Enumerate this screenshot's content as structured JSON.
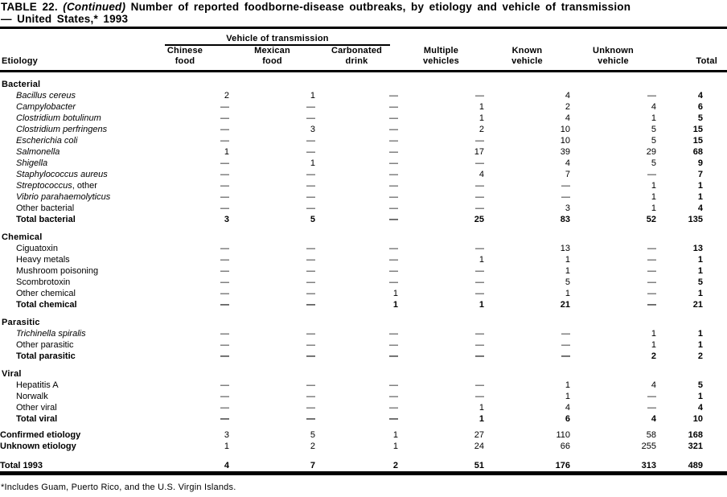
{
  "title": {
    "part1": "TABLE 22.",
    "part2": "(Continued)",
    "part3": "Number of reported foodborne-disease outbreaks, by etiology and vehicle of transmission",
    "line2": "— United States,* 1993"
  },
  "table": {
    "spanner_label": "Vehicle of transmission",
    "etiology_header": "Etiology",
    "columns": [
      "Chinese\nfood",
      "Mexican\nfood",
      "Carbonated\ndrink",
      "Multiple\nvehicles",
      "Known\nvehicle",
      "Unknown\nvehicle",
      "Total"
    ],
    "sections": [
      {
        "header": "Bacterial",
        "rows": [
          {
            "label": "Bacillus cereus",
            "italic": true,
            "values": [
              "2",
              "1",
              "—",
              "—",
              "4",
              "—",
              "4"
            ]
          },
          {
            "label": "Campylobacter",
            "italic": true,
            "values": [
              "—",
              "—",
              "—",
              "1",
              "2",
              "4",
              "6"
            ]
          },
          {
            "label": "Clostridium botulinum",
            "italic": true,
            "values": [
              "—",
              "—",
              "—",
              "1",
              "4",
              "1",
              "5"
            ]
          },
          {
            "label": "Clostridium perfringens",
            "italic": true,
            "values": [
              "—",
              "3",
              "—",
              "2",
              "10",
              "5",
              "15"
            ]
          },
          {
            "label": "Escherichia coli",
            "italic": true,
            "values": [
              "—",
              "—",
              "—",
              "—",
              "10",
              "5",
              "15"
            ]
          },
          {
            "label": "Salmonella",
            "italic": true,
            "values": [
              "1",
              "—",
              "—",
              "17",
              "39",
              "29",
              "68"
            ]
          },
          {
            "label": "Shigella",
            "italic": true,
            "values": [
              "—",
              "1",
              "—",
              "—",
              "4",
              "5",
              "9"
            ]
          },
          {
            "label": "Staphylococcus aureus",
            "italic": true,
            "values": [
              "—",
              "—",
              "—",
              "4",
              "7",
              "—",
              "7"
            ]
          },
          {
            "label": "Streptococcus",
            "suffix": ", other",
            "italic": true,
            "values": [
              "—",
              "—",
              "—",
              "—",
              "—",
              "1",
              "1"
            ]
          },
          {
            "label": "Vibrio parahaemolyticus",
            "italic": true,
            "values": [
              "—",
              "—",
              "—",
              "—",
              "—",
              "1",
              "1"
            ]
          },
          {
            "label": "Other bacterial",
            "values": [
              "—",
              "—",
              "—",
              "—",
              "3",
              "1",
              "4"
            ]
          },
          {
            "label": "Total bacterial",
            "bold": true,
            "values": [
              "3",
              "5",
              "—",
              "25",
              "83",
              "52",
              "135"
            ]
          }
        ]
      },
      {
        "header": "Chemical",
        "rows": [
          {
            "label": "Ciguatoxin",
            "values": [
              "—",
              "—",
              "—",
              "—",
              "13",
              "—",
              "13"
            ]
          },
          {
            "label": "Heavy metals",
            "values": [
              "—",
              "—",
              "—",
              "1",
              "1",
              "—",
              "1"
            ]
          },
          {
            "label": "Mushroom poisoning",
            "values": [
              "—",
              "—",
              "—",
              "—",
              "1",
              "—",
              "1"
            ]
          },
          {
            "label": "Scombrotoxin",
            "values": [
              "—",
              "—",
              "—",
              "—",
              "5",
              "—",
              "5"
            ]
          },
          {
            "label": "Other chemical",
            "values": [
              "—",
              "—",
              "1",
              "—",
              "1",
              "—",
              "1"
            ]
          },
          {
            "label": "Total chemical",
            "bold": true,
            "values": [
              "—",
              "—",
              "1",
              "1",
              "21",
              "—",
              "21"
            ]
          }
        ]
      },
      {
        "header": "Parasitic",
        "rows": [
          {
            "label": "Trichinella spiralis",
            "italic": true,
            "values": [
              "—",
              "—",
              "—",
              "—",
              "—",
              "1",
              "1"
            ]
          },
          {
            "label": "Other parasitic",
            "values": [
              "—",
              "—",
              "—",
              "—",
              "—",
              "1",
              "1"
            ]
          },
          {
            "label": "Total parasitic",
            "bold": true,
            "values": [
              "—",
              "—",
              "—",
              "—",
              "—",
              "2",
              "2"
            ]
          }
        ]
      },
      {
        "header": "Viral",
        "rows": [
          {
            "label": "Hepatitis A",
            "values": [
              "—",
              "—",
              "—",
              "—",
              "1",
              "4",
              "5"
            ]
          },
          {
            "label": "Norwalk",
            "values": [
              "—",
              "—",
              "—",
              "—",
              "1",
              "—",
              "1"
            ]
          },
          {
            "label": "Other viral",
            "values": [
              "—",
              "—",
              "—",
              "1",
              "4",
              "—",
              "4"
            ]
          },
          {
            "label": "Total viral",
            "bold": true,
            "values": [
              "—",
              "—",
              "—",
              "1",
              "6",
              "4",
              "10"
            ]
          }
        ]
      }
    ],
    "summary_rows": [
      {
        "label": "Confirmed etiology",
        "bold_label": true,
        "gap": "sm",
        "values": [
          "3",
          "5",
          "1",
          "27",
          "110",
          "58",
          "168"
        ]
      },
      {
        "label": "Unknown etiology",
        "bold_label": true,
        "values": [
          "1",
          "2",
          "1",
          "24",
          "66",
          "255",
          "321"
        ]
      },
      {
        "label": "Total 1993",
        "bold": true,
        "gap": "lg",
        "values": [
          "4",
          "7",
          "2",
          "51",
          "176",
          "313",
          "489"
        ]
      }
    ]
  },
  "footnote": "*Includes Guam, Puerto Rico, and the U.S. Virgin Islands.",
  "colors": {
    "text": "#000000",
    "background": "#ffffff",
    "rule": "#000000"
  }
}
